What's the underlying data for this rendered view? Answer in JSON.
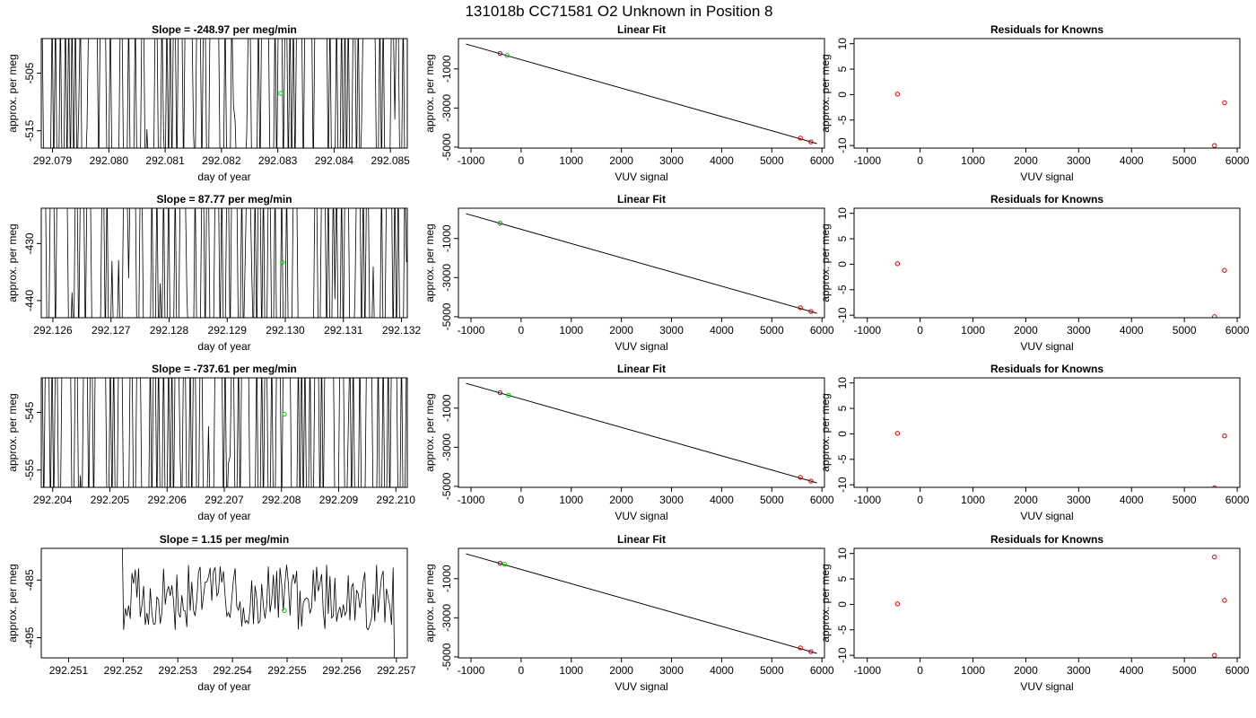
{
  "title": "131018b      CC71581    O2 Unknown in Position  8",
  "chart_data": [
    {
      "type": "line",
      "panel": "timeseries",
      "row": 0,
      "title": "Slope =  -248.97  per meg/min",
      "xlabel": "day of year",
      "ylabel": "approx. per meg",
      "xlim": [
        292.0788,
        292.0853
      ],
      "ylim": [
        -518,
        -499
      ],
      "xticks": [
        292.079,
        292.08,
        292.081,
        292.082,
        292.083,
        292.084,
        292.085
      ],
      "xtick_labels": [
        "292.079",
        "292.080",
        "292.081",
        "292.082",
        "292.083",
        "292.084",
        "292.085"
      ],
      "yticks": [
        -505,
        -515
      ],
      "ytick_labels": [
        "-505",
        "-515"
      ],
      "mean_point": {
        "x": 292.08305,
        "y": -508.5
      },
      "series_color": "#000000",
      "mean_color": "#00cc00"
    },
    {
      "type": "scatter",
      "panel": "linear_fit",
      "row": 0,
      "title": "Linear Fit",
      "xlabel": "VUV signal",
      "ylabel": "approx. per meg",
      "xlim": [
        -1250,
        6050
      ],
      "ylim": [
        -5050,
        550
      ],
      "xticks": [
        -1000,
        0,
        1000,
        2000,
        3000,
        4000,
        5000,
        6000
      ],
      "xtick_labels": [
        "-1000",
        "0",
        "1000",
        "2000",
        "3000",
        "4000",
        "5000",
        "6000"
      ],
      "yticks": [
        -1000,
        -3000,
        -5000
      ],
      "ytick_labels": [
        "-1000",
        "-3000",
        "-5000"
      ],
      "fit_line": {
        "x": [
          -1100,
          5900
        ],
        "y": [
          272,
          -4820
        ]
      },
      "knowns": [
        {
          "x": -420,
          "y": -210
        },
        {
          "x": 5570,
          "y": -4540
        },
        {
          "x": 5780,
          "y": -4730
        }
      ],
      "unknown": [
        {
          "x": -280,
          "y": -315
        }
      ],
      "known_color": "#cc0000",
      "unknown_color": "#00cc00"
    },
    {
      "type": "scatter",
      "panel": "residuals",
      "row": 0,
      "title": "Residuals for Knowns",
      "xlabel": "VUV signal",
      "ylabel": "approx. per meg",
      "xlim": [
        -1250,
        6050
      ],
      "ylim": [
        -10.5,
        11
      ],
      "xticks": [
        -1000,
        0,
        1000,
        2000,
        3000,
        4000,
        5000,
        6000
      ],
      "xtick_labels": [
        "-1000",
        "0",
        "1000",
        "2000",
        "3000",
        "4000",
        "5000",
        "6000"
      ],
      "yticks": [
        10,
        5,
        0,
        -5,
        -10
      ],
      "ytick_labels": [
        "10",
        "5",
        "0",
        "-5",
        "-10"
      ],
      "points": [
        {
          "x": -430,
          "y": 0.1
        },
        {
          "x": 5570,
          "y": -10
        },
        {
          "x": 5760,
          "y": -1.6
        }
      ],
      "point_color": "#cc0000"
    },
    {
      "type": "line",
      "panel": "timeseries",
      "row": 1,
      "title": "Slope =  87.77  per meg/min",
      "xlabel": "day of year",
      "ylabel": "approx. per meg",
      "xlim": [
        292.1258,
        292.1321
      ],
      "ylim": [
        -443,
        -423.8
      ],
      "xticks": [
        292.126,
        292.127,
        292.128,
        292.129,
        292.13,
        292.131,
        292.132
      ],
      "xtick_labels": [
        "292.126",
        "292.127",
        "292.128",
        "292.129",
        "292.130",
        "292.131",
        "292.132"
      ],
      "yticks": [
        -430,
        -440
      ],
      "ytick_labels": [
        "-430",
        "-440"
      ],
      "mean_point": {
        "x": 292.12995,
        "y": -433.3
      },
      "series_color": "#000000",
      "mean_color": "#00cc00"
    },
    {
      "type": "scatter",
      "panel": "linear_fit",
      "row": 1,
      "title": "Linear Fit",
      "xlabel": "VUV signal",
      "ylabel": "approx. per meg",
      "xlim": [
        -1250,
        6050
      ],
      "ylim": [
        -5050,
        550
      ],
      "xticks": [
        -1000,
        0,
        1000,
        2000,
        3000,
        4000,
        5000,
        6000
      ],
      "xtick_labels": [
        "-1000",
        "0",
        "1000",
        "2000",
        "3000",
        "4000",
        "5000",
        "6000"
      ],
      "yticks": [
        -1000,
        -3000,
        -5000
      ],
      "ytick_labels": [
        "-1000",
        "-3000",
        "-5000"
      ],
      "fit_line": {
        "x": [
          -1100,
          5900
        ],
        "y": [
          272,
          -4820
        ]
      },
      "knowns": [
        {
          "x": -420,
          "y": -210
        },
        {
          "x": 5570,
          "y": -4540
        },
        {
          "x": 5780,
          "y": -4730
        }
      ],
      "unknown": [
        {
          "x": -420,
          "y": -210
        }
      ],
      "known_color": "#cc0000",
      "unknown_color": "#00cc00"
    },
    {
      "type": "scatter",
      "panel": "residuals",
      "row": 1,
      "title": "Residuals for Knowns",
      "xlabel": "VUV signal",
      "ylabel": "approx. per meg",
      "xlim": [
        -1250,
        6050
      ],
      "ylim": [
        -10.5,
        11
      ],
      "xticks": [
        -1000,
        0,
        1000,
        2000,
        3000,
        4000,
        5000,
        6000
      ],
      "xtick_labels": [
        "-1000",
        "0",
        "1000",
        "2000",
        "3000",
        "4000",
        "5000",
        "6000"
      ],
      "yticks": [
        10,
        5,
        0,
        -5,
        -10
      ],
      "ytick_labels": [
        "10",
        "5",
        "0",
        "-5",
        "-10"
      ],
      "points": [
        {
          "x": -430,
          "y": 0.1
        },
        {
          "x": 5570,
          "y": -10.3
        },
        {
          "x": 5760,
          "y": -1.2
        }
      ],
      "point_color": "#cc0000"
    },
    {
      "type": "line",
      "panel": "timeseries",
      "row": 2,
      "title": "Slope =  -737.61  per meg/min",
      "xlabel": "day of year",
      "ylabel": "approx. per meg",
      "xlim": [
        292.2038,
        292.2102
      ],
      "ylim": [
        -558,
        -539
      ],
      "xticks": [
        292.204,
        292.205,
        292.206,
        292.207,
        292.208,
        292.209,
        292.21
      ],
      "xtick_labels": [
        "292.204",
        "292.205",
        "292.206",
        "292.207",
        "292.208",
        "292.209",
        "292.210"
      ],
      "yticks": [
        -545,
        -555
      ],
      "ytick_labels": [
        "-545",
        "-555"
      ],
      "mean_point": {
        "x": 292.20805,
        "y": -545.3
      },
      "series_color": "#000000",
      "mean_color": "#00cc00"
    },
    {
      "type": "scatter",
      "panel": "linear_fit",
      "row": 2,
      "title": "Linear Fit",
      "xlabel": "VUV signal",
      "ylabel": "approx. per meg",
      "xlim": [
        -1250,
        6050
      ],
      "ylim": [
        -5050,
        550
      ],
      "xticks": [
        -1000,
        0,
        1000,
        2000,
        3000,
        4000,
        5000,
        6000
      ],
      "xtick_labels": [
        "-1000",
        "0",
        "1000",
        "2000",
        "3000",
        "4000",
        "5000",
        "6000"
      ],
      "yticks": [
        -1000,
        -3000,
        -5000
      ],
      "ytick_labels": [
        "-1000",
        "-3000",
        "-5000"
      ],
      "fit_line": {
        "x": [
          -1100,
          5900
        ],
        "y": [
          272,
          -4820
        ]
      },
      "knowns": [
        {
          "x": -420,
          "y": -210
        },
        {
          "x": 5570,
          "y": -4540
        },
        {
          "x": 5780,
          "y": -4730
        }
      ],
      "unknown": [
        {
          "x": -250,
          "y": -340
        }
      ],
      "known_color": "#cc0000",
      "unknown_color": "#00cc00"
    },
    {
      "type": "scatter",
      "panel": "residuals",
      "row": 2,
      "title": "Residuals for Knowns",
      "xlabel": "VUV signal",
      "ylabel": "approx. per meg",
      "xlim": [
        -1250,
        6050
      ],
      "ylim": [
        -10.5,
        11
      ],
      "xticks": [
        -1000,
        0,
        1000,
        2000,
        3000,
        4000,
        5000,
        6000
      ],
      "xtick_labels": [
        "-1000",
        "0",
        "1000",
        "2000",
        "3000",
        "4000",
        "5000",
        "6000"
      ],
      "yticks": [
        10,
        5,
        0,
        -5,
        -10
      ],
      "ytick_labels": [
        "10",
        "5",
        "0",
        "-5",
        "-10"
      ],
      "points": [
        {
          "x": -430,
          "y": 0.1
        },
        {
          "x": 5570,
          "y": -10.6
        },
        {
          "x": 5760,
          "y": -0.4
        }
      ],
      "point_color": "#cc0000"
    },
    {
      "type": "line",
      "panel": "timeseries",
      "row": 3,
      "title": "Slope =  1.15  per meg/min",
      "xlabel": "day of year",
      "ylabel": "approx. per meg",
      "xlim": [
        292.2505,
        292.2572
      ],
      "ylim": [
        -498.5,
        -479.5
      ],
      "xticks": [
        292.251,
        292.252,
        292.253,
        292.254,
        292.255,
        292.256,
        292.257
      ],
      "xtick_labels": [
        "292.251",
        "292.252",
        "292.253",
        "292.254",
        "292.255",
        "292.256",
        "292.257"
      ],
      "yticks": [
        -485,
        -495
      ],
      "ytick_labels": [
        "-485",
        "-495"
      ],
      "mean_point": {
        "x": 292.25495,
        "y": -490.3
      },
      "series_color": "#000000",
      "mean_color": "#00cc00"
    },
    {
      "type": "scatter",
      "panel": "linear_fit",
      "row": 3,
      "title": "Linear Fit",
      "xlabel": "VUV signal",
      "ylabel": "approx. per meg",
      "xlim": [
        -1250,
        6050
      ],
      "ylim": [
        -5050,
        550
      ],
      "xticks": [
        -1000,
        0,
        1000,
        2000,
        3000,
        4000,
        5000,
        6000
      ],
      "xtick_labels": [
        "-1000",
        "0",
        "1000",
        "2000",
        "3000",
        "4000",
        "5000",
        "6000"
      ],
      "yticks": [
        -1000,
        -3000,
        -5000
      ],
      "ytick_labels": [
        "-1000",
        "-3000",
        "-5000"
      ],
      "fit_line": {
        "x": [
          -1100,
          5900
        ],
        "y": [
          272,
          -4820
        ]
      },
      "knowns": [
        {
          "x": -420,
          "y": -210
        },
        {
          "x": 5570,
          "y": -4540
        },
        {
          "x": 5780,
          "y": -4730
        }
      ],
      "unknown": [
        {
          "x": -330,
          "y": -265
        }
      ],
      "known_color": "#cc0000",
      "unknown_color": "#00cc00"
    },
    {
      "type": "scatter",
      "panel": "residuals",
      "row": 3,
      "title": "Residuals for Knowns",
      "xlabel": "VUV signal",
      "ylabel": "approx. per meg",
      "xlim": [
        -1250,
        6050
      ],
      "ylim": [
        -10.5,
        11
      ],
      "xticks": [
        -1000,
        0,
        1000,
        2000,
        3000,
        4000,
        5000,
        6000
      ],
      "xtick_labels": [
        "-1000",
        "0",
        "1000",
        "2000",
        "3000",
        "4000",
        "5000",
        "6000"
      ],
      "yticks": [
        10,
        5,
        0,
        -5,
        -10
      ],
      "ytick_labels": [
        "10",
        "5",
        "0",
        "-5",
        "-10"
      ],
      "points": [
        {
          "x": -430,
          "y": 0.1
        },
        {
          "x": 5570,
          "y": 9.3
        },
        {
          "x": 5760,
          "y": 0.8
        },
        {
          "x": 5570,
          "y": -10
        }
      ],
      "point_color": "#cc0000"
    }
  ]
}
